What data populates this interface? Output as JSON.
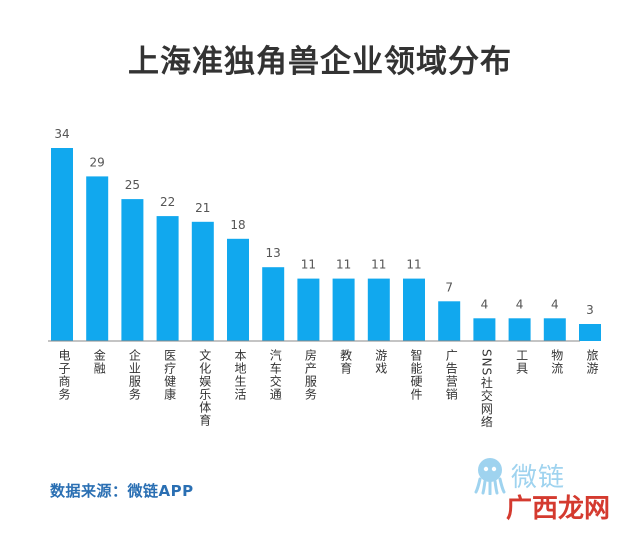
{
  "chart_data": {
    "type": "bar",
    "title": "上海准独角兽企业领域分布",
    "xlabel": "",
    "ylabel": "",
    "categories": [
      "电子商务",
      "金融",
      "企业服务",
      "医疗健康",
      "文化娱乐体育",
      "本地生活",
      "汽车交通",
      "房产服务",
      "教育",
      "游戏",
      "智能硬件",
      "广告营销",
      "SNS社交网络",
      "工具",
      "物流",
      "旅游"
    ],
    "values": [
      34,
      29,
      25,
      22,
      21,
      18,
      13,
      11,
      11,
      11,
      11,
      7,
      4,
      4,
      4,
      3
    ],
    "ylim": [
      0,
      34
    ],
    "grid": false,
    "legend": "none",
    "bar_color": "#11a8ee"
  },
  "source": "数据来源：微链APP",
  "logo": {
    "text": "微链",
    "icon": "octopus-icon",
    "color": "#9fd3ef"
  },
  "watermark": {
    "text": "广西龙网",
    "color": "#d43a2f"
  }
}
